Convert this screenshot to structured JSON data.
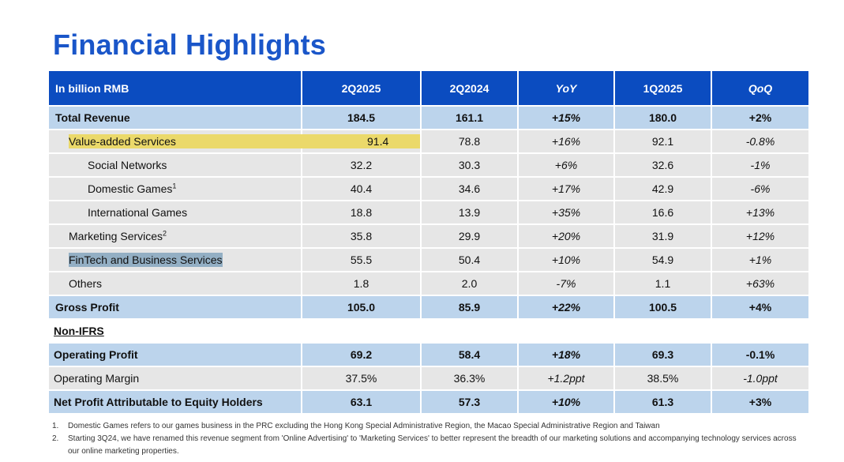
{
  "title": "Financial Highlights",
  "header": {
    "label": "In billion RMB",
    "cols": [
      "2Q2025",
      "2Q2024",
      "YoY",
      "1Q2025",
      "QoQ"
    ]
  },
  "rows": [
    {
      "label": "Total Revenue",
      "values": [
        "184.5",
        "161.1",
        "+15%",
        "180.0",
        "+2%"
      ]
    },
    {
      "label": "Value-added Services",
      "values": [
        "91.4",
        "78.8",
        "+16%",
        "92.1",
        "-0.8%"
      ]
    },
    {
      "label": "Social Networks",
      "values": [
        "32.2",
        "30.3",
        "+6%",
        "32.6",
        "-1%"
      ]
    },
    {
      "label": "Domestic Games",
      "sup": "1",
      "values": [
        "40.4",
        "34.6",
        "+17%",
        "42.9",
        "-6%"
      ]
    },
    {
      "label": "International Games",
      "values": [
        "18.8",
        "13.9",
        "+35%",
        "16.6",
        "+13%"
      ]
    },
    {
      "label": "Marketing Services",
      "sup": "2",
      "values": [
        "35.8",
        "29.9",
        "+20%",
        "31.9",
        "+12%"
      ]
    },
    {
      "label": "FinTech and Business Services",
      "values": [
        "55.5",
        "50.4",
        "+10%",
        "54.9",
        "+1%"
      ]
    },
    {
      "label": "Others",
      "values": [
        "1.8",
        "2.0",
        "-7%",
        "1.1",
        "+63%"
      ]
    },
    {
      "label": "Gross Profit",
      "values": [
        "105.0",
        "85.9",
        "+22%",
        "100.5",
        "+4%"
      ]
    },
    {
      "label": "Non-IFRS"
    },
    {
      "label": "Operating Profit",
      "values": [
        "69.2",
        "58.4",
        "+18%",
        "69.3",
        "-0.1%"
      ]
    },
    {
      "label": "Operating Margin",
      "values": [
        "37.5%",
        "36.3%",
        "+1.2ppt",
        "38.5%",
        "-1.0ppt"
      ]
    },
    {
      "label": "Net Profit Attributable to Equity Holders",
      "values": [
        "63.1",
        "57.3",
        "+10%",
        "61.3",
        "+3%"
      ]
    }
  ],
  "notes": [
    {
      "num": "1.",
      "text": "Domestic Games refers to our games business in the PRC excluding the Hong Kong Special Administrative Region, the Macao Special Administrative Region and Taiwan"
    },
    {
      "num": "2.",
      "text": "Starting 3Q24, we have renamed this revenue segment from 'Online Advertising' to 'Marketing Services' to better represent the breadth of our marketing solutions and accompanying technology services across our online marketing properties."
    }
  ],
  "colors": {
    "title": "#1a56c9",
    "header_bg": "#0b4cc0",
    "summary_row_bg": "#bcd4ec",
    "detail_row_bg": "#e6e6e6",
    "highlight_yellow": "#ebd96a",
    "highlight_blue": "#93afc4"
  }
}
